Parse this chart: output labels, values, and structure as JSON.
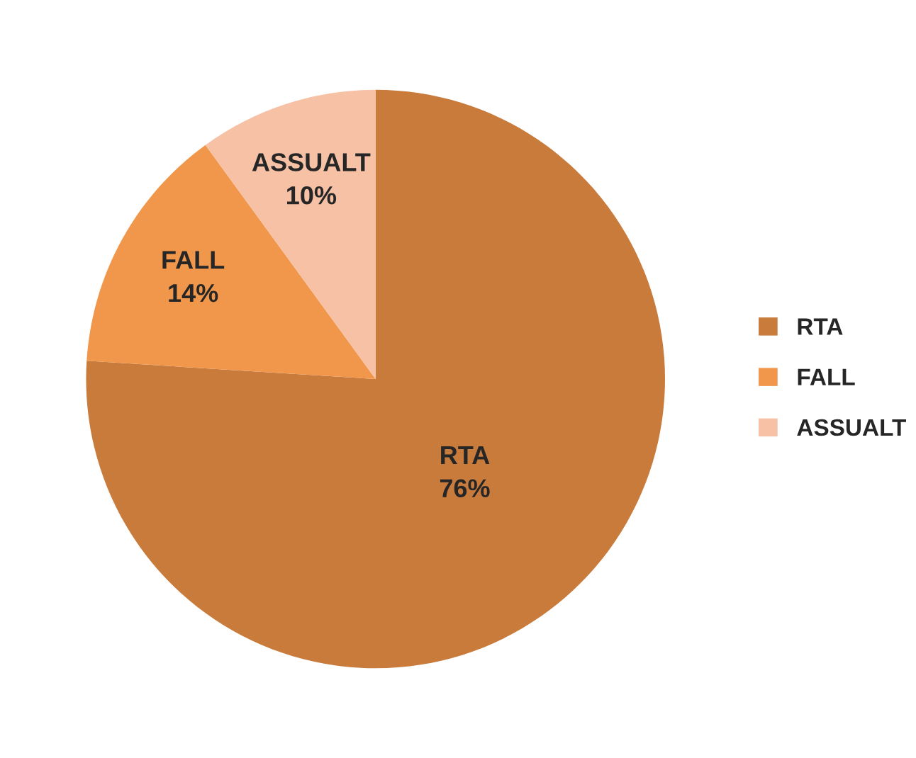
{
  "chart_data": {
    "type": "pie",
    "categories": [
      "RTA",
      "FALL",
      "ASSUALT"
    ],
    "values": [
      76,
      14,
      10
    ],
    "colors": [
      "#c97b3c",
      "#f0974b",
      "#f6c1a5"
    ],
    "value_labels": [
      "76%",
      "14%",
      "10%"
    ],
    "legend": "right"
  }
}
